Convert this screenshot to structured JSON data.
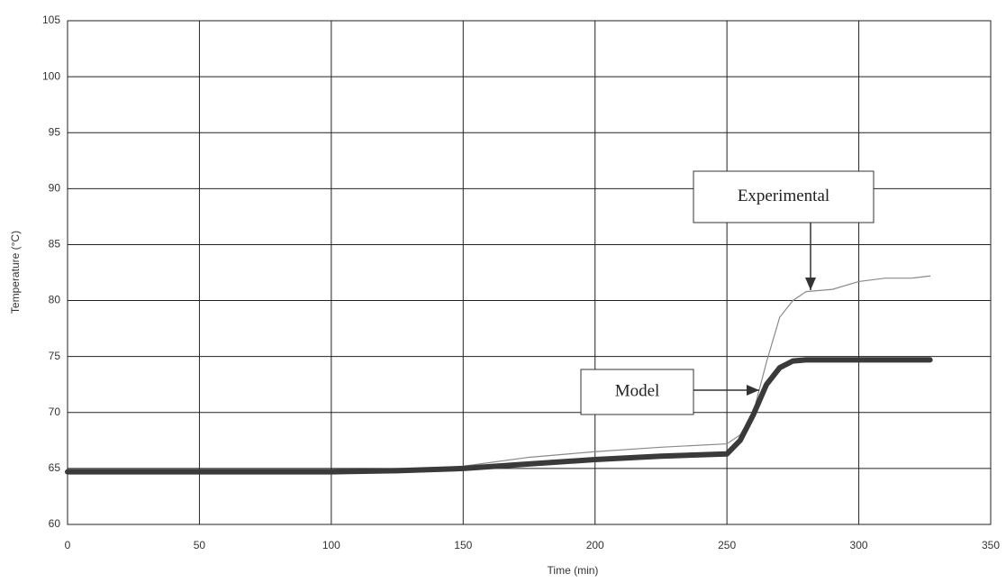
{
  "chart_data": {
    "type": "line",
    "x_label": "Time (min)",
    "y_label": "Temperature (°C)",
    "x": [
      0,
      25,
      50,
      75,
      100,
      125,
      150,
      175,
      200,
      225,
      250,
      255,
      260,
      265,
      270,
      275,
      280,
      290,
      300,
      310,
      320,
      327
    ],
    "series": [
      {
        "name": "Experimental",
        "color": "#8a8a8a",
        "values": [
          64.7,
          64.7,
          64.7,
          64.7,
          64.8,
          64.9,
          65.2,
          66.0,
          66.5,
          66.9,
          67.2,
          68.0,
          70.0,
          74.5,
          78.5,
          80.0,
          80.8,
          81.0,
          81.7,
          82.0,
          82.0,
          82.2
        ]
      },
      {
        "name": "Model",
        "color": "#3a3a3a",
        "values": [
          64.7,
          64.7,
          64.7,
          64.7,
          64.7,
          64.8,
          65.0,
          65.4,
          65.8,
          66.1,
          66.3,
          67.5,
          69.8,
          72.5,
          74.0,
          74.6,
          74.7,
          74.7,
          74.7,
          74.7,
          74.7,
          74.7
        ]
      }
    ],
    "xlim": [
      0,
      350
    ],
    "xticks": [
      0,
      50,
      100,
      150,
      200,
      250,
      300,
      350
    ],
    "ylim": [
      60,
      105
    ],
    "yticks": [
      60,
      65,
      70,
      75,
      80,
      85,
      90,
      95,
      100,
      105
    ],
    "grid": true
  }
}
